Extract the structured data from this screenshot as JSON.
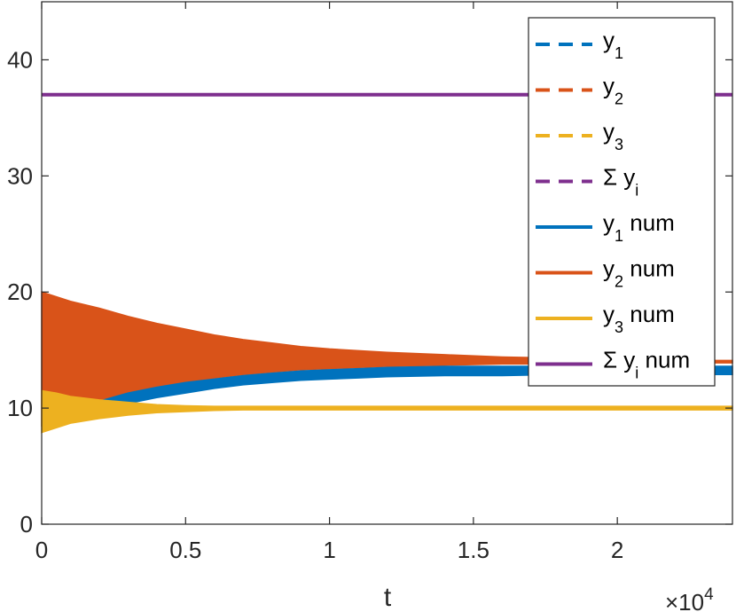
{
  "chart_data": {
    "type": "line",
    "title": "",
    "xlabel": "t",
    "ylabel": "",
    "x_exponent_label": "×10",
    "x_exponent_power": "4",
    "xlim": [
      0,
      24000
    ],
    "ylim": [
      0,
      45
    ],
    "x_ticks": [
      0,
      5000,
      10000,
      15000,
      20000
    ],
    "x_tick_labels": [
      "0",
      "0.5",
      "1",
      "1.5",
      "2"
    ],
    "y_ticks": [
      0,
      10,
      20,
      30,
      40
    ],
    "y_tick_labels": [
      "0",
      "10",
      "20",
      "30",
      "40"
    ],
    "grid": false,
    "legend_position": "top-right",
    "colors": {
      "y1": "#0072BD",
      "y2": "#D95319",
      "y3": "#EDB120",
      "sum": "#7E2F8E",
      "axis": "#262626"
    },
    "legend": [
      {
        "base": "y",
        "sub": "1",
        "suffix": "",
        "style": "dashed",
        "color_key": "y1"
      },
      {
        "base": "y",
        "sub": "2",
        "suffix": "",
        "style": "dashed",
        "color_key": "y2"
      },
      {
        "base": "y",
        "sub": "3",
        "suffix": "",
        "style": "dashed",
        "color_key": "y3"
      },
      {
        "base": "Σ y",
        "sub": "i",
        "suffix": "",
        "style": "dashed",
        "color_key": "sum"
      },
      {
        "base": "y",
        "sub": "1",
        "suffix": " num",
        "style": "solid",
        "color_key": "y1"
      },
      {
        "base": "y",
        "sub": "2",
        "suffix": " num",
        "style": "solid",
        "color_key": "y2"
      },
      {
        "base": "y",
        "sub": "3",
        "suffix": " num",
        "style": "solid",
        "color_key": "y3"
      },
      {
        "base": "Σ y",
        "sub": "i",
        "suffix": " num",
        "style": "solid",
        "color_key": "sum"
      }
    ],
    "series": [
      {
        "key": "y2_num",
        "color_key": "y2",
        "kind": "band",
        "x": [
          0,
          500,
          1000,
          2000,
          3000,
          4000,
          5000,
          6000,
          7000,
          8000,
          9000,
          10000,
          12000,
          14000,
          16000,
          18000,
          20000,
          22000,
          24000
        ],
        "upper": [
          20.0,
          19.6,
          19.2,
          18.6,
          17.9,
          17.3,
          16.8,
          16.3,
          15.9,
          15.6,
          15.3,
          15.1,
          14.8,
          14.6,
          14.4,
          14.3,
          14.2,
          14.1,
          14.1
        ],
        "lower": [
          8.5,
          9.2,
          9.8,
          10.6,
          11.3,
          11.8,
          12.2,
          12.6,
          12.9,
          13.1,
          13.3,
          13.4,
          13.6,
          13.7,
          13.8,
          13.8,
          13.9,
          13.9,
          13.9
        ]
      },
      {
        "key": "y1_num",
        "color_key": "y1",
        "kind": "band",
        "x": [
          2000,
          3000,
          4000,
          5000,
          6000,
          7000,
          8000,
          9000,
          10000,
          11000,
          12000,
          14000,
          16000,
          18000,
          20000,
          22000,
          24000
        ],
        "upper": [
          10.6,
          11.3,
          11.8,
          12.2,
          12.5,
          12.8,
          13.0,
          13.2,
          13.3,
          13.4,
          13.5,
          13.6,
          13.6,
          13.6,
          13.6,
          13.6,
          13.6
        ],
        "lower": [
          9.8,
          10.4,
          10.9,
          11.3,
          11.7,
          12.0,
          12.2,
          12.4,
          12.5,
          12.6,
          12.7,
          12.8,
          12.8,
          12.9,
          12.9,
          12.9,
          12.9
        ]
      },
      {
        "key": "y3_num",
        "color_key": "y3",
        "kind": "band",
        "x": [
          0,
          500,
          1000,
          2000,
          3000,
          4000,
          5000,
          6000,
          7000,
          8000,
          10000,
          14000,
          18000,
          24000
        ],
        "upper": [
          11.5,
          11.3,
          11.0,
          10.7,
          10.5,
          10.3,
          10.2,
          10.15,
          10.15,
          10.15,
          10.15,
          10.15,
          10.15,
          10.15
        ],
        "lower": [
          7.9,
          8.3,
          8.7,
          9.1,
          9.4,
          9.6,
          9.7,
          9.8,
          9.85,
          9.85,
          9.85,
          9.85,
          9.85,
          9.85
        ]
      },
      {
        "key": "sum_num",
        "color_key": "sum",
        "kind": "line",
        "x": [
          0,
          24000
        ],
        "y": [
          37,
          37
        ]
      }
    ]
  }
}
